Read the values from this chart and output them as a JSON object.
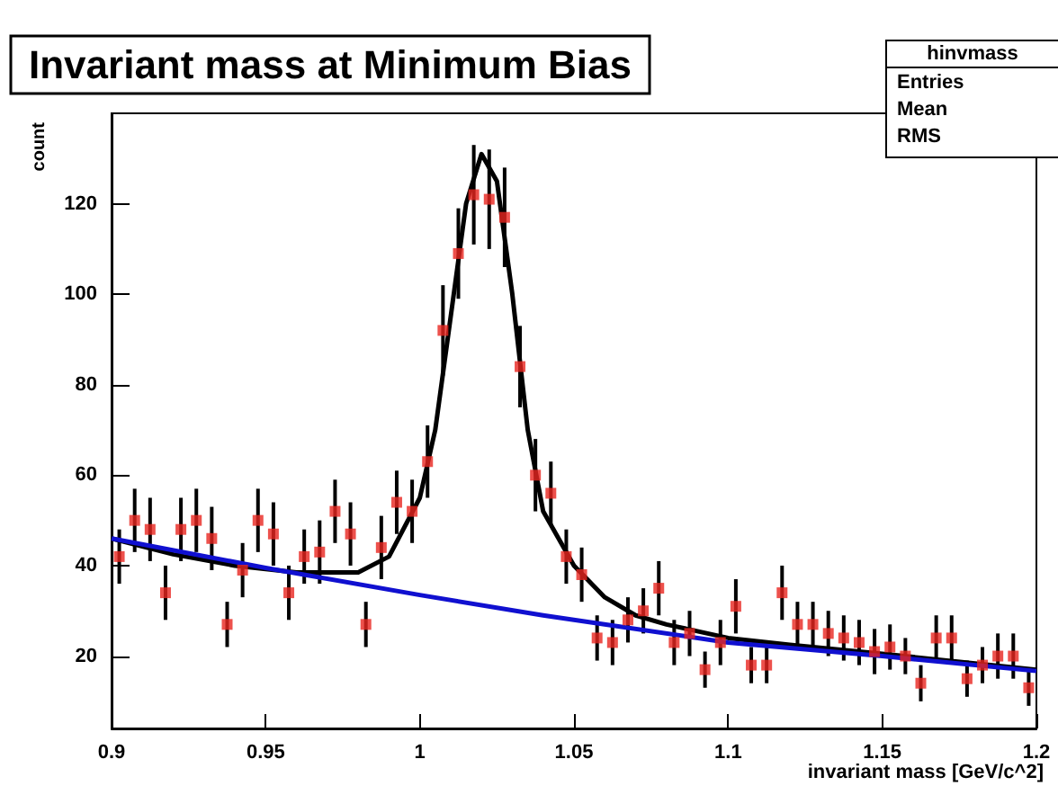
{
  "chart_data": {
    "type": "scatter",
    "title": "Invariant mass at Minimum Bias",
    "xlabel": "invariant mass [GeV/c^2]",
    "ylabel": "count",
    "annotations": [
      "hinvmass",
      "Entries",
      "Mean",
      "RMS"
    ],
    "x": [
      0.9025,
      0.9075,
      0.9125,
      0.9175,
      0.9225,
      0.9275,
      0.9325,
      0.9375,
      0.9425,
      0.9475,
      0.9525,
      0.9575,
      0.9625,
      0.9675,
      0.9725,
      0.9775,
      0.9825,
      0.9875,
      0.9925,
      0.9975,
      1.0025,
      1.0075,
      1.0125,
      1.0175,
      1.0225,
      1.0275,
      1.0325,
      1.0375,
      1.0425,
      1.0475,
      1.0525,
      1.0575,
      1.0625,
      1.0675,
      1.0725,
      1.0775,
      1.0825,
      1.0875,
      1.0925,
      1.0975,
      1.1025,
      1.1075,
      1.1125,
      1.1175,
      1.1225,
      1.1275,
      1.1325,
      1.1375,
      1.1425,
      1.1475,
      1.1525,
      1.1575,
      1.1625,
      1.1675,
      1.1725,
      1.1775,
      1.1825,
      1.1875,
      1.1925,
      1.1975
    ],
    "series": [
      {
        "color": "#e8261f",
        "marker": "square",
        "values": [
          42,
          50,
          48,
          34,
          48,
          50,
          46,
          27,
          39,
          50,
          47,
          34,
          42,
          43,
          52,
          47,
          27,
          44,
          54,
          52,
          63,
          92,
          109,
          122,
          121,
          117,
          84,
          60,
          56,
          42,
          38,
          24,
          23,
          28,
          30,
          35,
          23,
          25,
          17,
          23,
          31,
          18,
          18,
          34,
          27,
          27,
          25,
          24,
          23,
          21,
          22,
          20,
          14,
          24,
          24,
          15,
          18,
          20,
          20,
          13
        ],
        "errors": [
          6,
          7,
          7,
          6,
          7,
          7,
          7,
          5,
          6,
          7,
          7,
          6,
          6,
          7,
          7,
          7,
          5,
          7,
          7,
          7,
          8,
          10,
          10,
          11,
          11,
          11,
          9,
          8,
          7,
          6,
          6,
          5,
          5,
          5,
          5,
          6,
          5,
          5,
          4,
          5,
          6,
          4,
          4,
          6,
          5,
          5,
          5,
          5,
          5,
          5,
          5,
          4,
          4,
          5,
          5,
          4,
          4,
          5,
          5,
          4
        ]
      },
      {
        "type": "line",
        "marker": "none",
        "color": "#000000",
        "x": [
          0.9,
          0.92,
          0.94,
          0.96,
          0.98,
          0.99,
          1.0,
          1.005,
          1.01,
          1.015,
          1.02,
          1.025,
          1.03,
          1.035,
          1.04,
          1.05,
          1.06,
          1.07,
          1.08,
          1.1,
          1.12,
          1.15,
          1.2
        ],
        "values": [
          46,
          42.5,
          40,
          38.5,
          38.5,
          42,
          55,
          70,
          95,
          120,
          131,
          125,
          100,
          70,
          52,
          40,
          33,
          29,
          27,
          24,
          22.5,
          20.5,
          17
        ]
      },
      {
        "type": "line",
        "marker": "none",
        "color": "#1010d0",
        "x": [
          0.9,
          0.95,
          1.0,
          1.04,
          1.1,
          1.15,
          1.2
        ],
        "values": [
          46,
          39.5,
          33.5,
          29,
          23,
          20,
          16.7
        ]
      }
    ],
    "xlim": [
      0.9,
      1.2
    ],
    "xticks": [
      0.9,
      0.95,
      1,
      1.05,
      1.1,
      1.15,
      1.2
    ],
    "ylim": [
      4,
      140
    ],
    "yticks": [
      20,
      40,
      60,
      80,
      100,
      120
    ],
    "grid": false,
    "line_style": "solid"
  }
}
